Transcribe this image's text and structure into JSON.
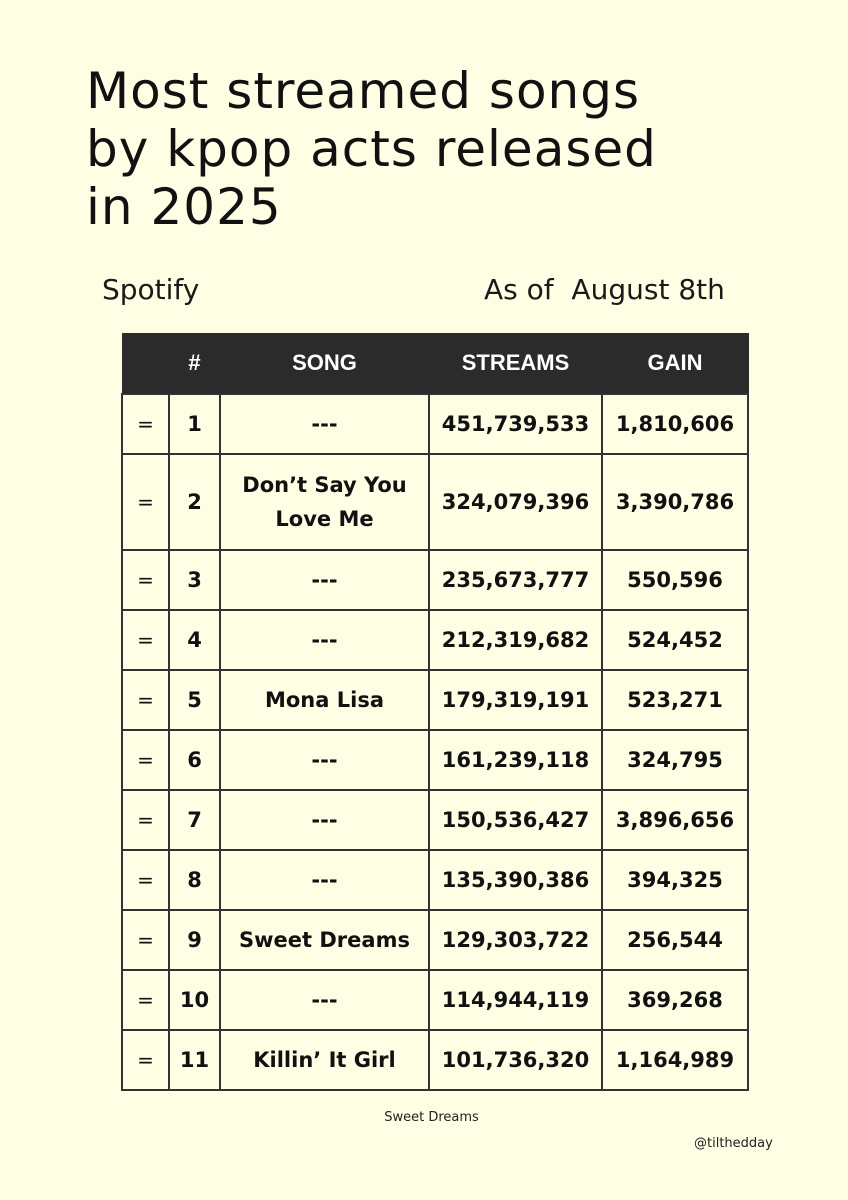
{
  "title": {
    "line1": "Most streamed songs",
    "line2": "by kpop acts released",
    "line3": "in 2025"
  },
  "platform": "Spotify",
  "as_of": "As of  August 8th",
  "table": {
    "headers": {
      "movement": "",
      "rank": "#",
      "song": "SONG",
      "streams": "STREAMS",
      "gain": "GAIN"
    },
    "rows": [
      {
        "movement": "=",
        "rank": "1",
        "song": "---",
        "streams": "451,739,533",
        "gain": "1,810,606"
      },
      {
        "movement": "=",
        "rank": "2",
        "song": "Don’t Say You Love Me",
        "streams": "324,079,396",
        "gain": "3,390,786"
      },
      {
        "movement": "=",
        "rank": "3",
        "song": "---",
        "streams": "235,673,777",
        "gain": "550,596"
      },
      {
        "movement": "=",
        "rank": "4",
        "song": "---",
        "streams": "212,319,682",
        "gain": "524,452"
      },
      {
        "movement": "=",
        "rank": "5",
        "song": "Mona Lisa",
        "streams": "179,319,191",
        "gain": "523,271"
      },
      {
        "movement": "=",
        "rank": "6",
        "song": "---",
        "streams": "161,239,118",
        "gain": "324,795"
      },
      {
        "movement": "=",
        "rank": "7",
        "song": "---",
        "streams": "150,536,427",
        "gain": "3,896,656"
      },
      {
        "movement": "=",
        "rank": "8",
        "song": "---",
        "streams": "135,390,386",
        "gain": "394,325"
      },
      {
        "movement": "=",
        "rank": "9",
        "song": "Sweet Dreams",
        "streams": "129,303,722",
        "gain": "256,544"
      },
      {
        "movement": "=",
        "rank": "10",
        "song": "---",
        "streams": "114,944,119",
        "gain": "369,268"
      },
      {
        "movement": "=",
        "rank": "11",
        "song": "Killin’ It Girl",
        "streams": "101,736,320",
        "gain": "1,164,989"
      }
    ]
  },
  "footnote": "Sweet Dreams",
  "handle": "@tilthedday"
}
